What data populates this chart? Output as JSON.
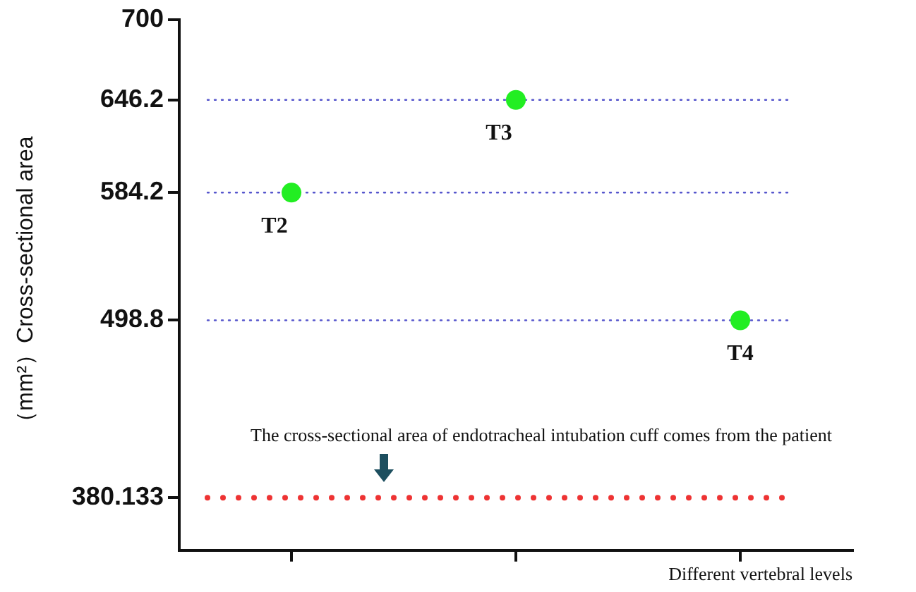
{
  "chart_data": {
    "type": "scatter",
    "ylabel": "（mm²）Cross-sectional area",
    "xlabel": "Different vertebral levels",
    "categories": [
      null,
      null,
      null
    ],
    "series": [
      {
        "color": "#22ee22",
        "values": [
          584.2,
          646.2,
          498.8
        ]
      }
    ],
    "ylim": [
      345,
      700
    ],
    "yticks": [
      380.133,
      498.8,
      584.2,
      646.2,
      700
    ],
    "tick_labels": "y",
    "grid": false,
    "legend": false,
    "marker": "circle",
    "ref_lines": [
      {
        "axis": "y",
        "value": 646.2,
        "color": "#5555cc",
        "line_style": "dotted"
      },
      {
        "axis": "y",
        "value": 584.2,
        "color": "#5555cc",
        "line_style": "dotted"
      },
      {
        "axis": "y",
        "value": 498.8,
        "color": "#5555cc",
        "line_style": "dotted"
      },
      {
        "axis": "y",
        "value": 380.133,
        "color": "#ee3333",
        "line_style": "dotted",
        "label": "The cross-sectional area of endotracheal intubation cuff comes from the patient"
      }
    ],
    "annotations": [
      {
        "text": "T2",
        "y": 584.2
      },
      {
        "text": "T3",
        "y": 646.2
      },
      {
        "text": "T4",
        "y": 498.8
      }
    ]
  }
}
